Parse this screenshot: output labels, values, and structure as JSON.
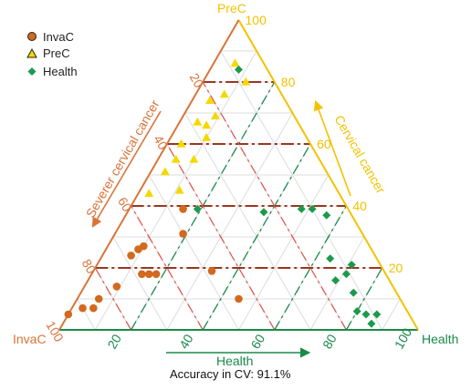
{
  "chart_data": {
    "type": "scatter",
    "subtype": "ternary",
    "grid": true,
    "legend_position": "top-left",
    "caption": "Accuracy in CV: 91.1%",
    "axes": {
      "preC": {
        "vertex_label": "PreC",
        "side_label": "Cervical cancer",
        "color": "#f2c200",
        "ticks": [
          "20",
          "40",
          "60",
          "80",
          "100"
        ]
      },
      "invaC": {
        "vertex_label": "InvaC",
        "side_label": "Severer cervical cancer",
        "color": "#d9743a",
        "ticks": [
          "20",
          "40",
          "60",
          "80",
          "100"
        ]
      },
      "health": {
        "vertex_label": "Health",
        "side_label": "Health",
        "color": "#1a8a4a",
        "ticks": [
          "20",
          "40",
          "60",
          "80",
          "100"
        ]
      }
    },
    "series": [
      {
        "name": "InvaC",
        "color": "#d2691e",
        "marker": "circle",
        "points": [
          {
            "health": 3,
            "precursor": 7
          },
          {
            "health": 6,
            "precursor": 7
          },
          {
            "health": 0,
            "precursor": 5
          },
          {
            "health": 6,
            "precursor": 10
          },
          {
            "health": 9,
            "precursor": 14
          },
          {
            "health": 14,
            "precursor": 18
          },
          {
            "health": 16,
            "precursor": 18
          },
          {
            "health": 18,
            "precursor": 18
          },
          {
            "health": 8,
            "precursor": 24
          },
          {
            "health": 10,
            "precursor": 27
          },
          {
            "health": 9,
            "precursor": 26
          },
          {
            "health": 19,
            "precursor": 31
          },
          {
            "health": 15,
            "precursor": 39
          },
          {
            "health": 45,
            "precursor": 10
          },
          {
            "health": 33,
            "precursor": 19
          }
        ]
      },
      {
        "name": "PreC",
        "color": "#f5d800",
        "marker": "triangle",
        "points": [
          {
            "health": 6,
            "precursor": 86
          },
          {
            "health": 8,
            "precursor": 76
          },
          {
            "health": 12,
            "precursor": 80
          },
          {
            "health": 5,
            "precursor": 74
          },
          {
            "health": 8,
            "precursor": 66
          },
          {
            "health": 9,
            "precursor": 69
          },
          {
            "health": 10,
            "precursor": 62
          },
          {
            "health": 5,
            "precursor": 67
          },
          {
            "health": 4,
            "precursor": 60
          },
          {
            "health": 10,
            "precursor": 55
          },
          {
            "health": 11,
            "precursor": 45
          },
          {
            "health": 5,
            "precursor": 55
          },
          {
            "health": 4,
            "precursor": 51
          },
          {
            "health": 3,
            "precursor": 44
          }
        ]
      },
      {
        "name": "Health",
        "color": "#1a9a4a",
        "marker": "diamond",
        "points": [
          {
            "health": 8,
            "precursor": 84
          },
          {
            "health": 48,
            "precursor": 39
          },
          {
            "health": 19,
            "precursor": 39
          },
          {
            "health": 38,
            "precursor": 38
          },
          {
            "health": 51,
            "precursor": 39
          },
          {
            "health": 56,
            "precursor": 37
          },
          {
            "health": 64,
            "precursor": 23
          },
          {
            "health": 71,
            "precursor": 21
          },
          {
            "health": 71,
            "precursor": 18
          },
          {
            "health": 69,
            "precursor": 16
          },
          {
            "health": 76,
            "precursor": 12
          },
          {
            "health": 80,
            "precursor": 6
          },
          {
            "health": 83,
            "precursor": 5
          },
          {
            "health": 86,
            "precursor": 5
          },
          {
            "health": 86,
            "precursor": 2
          }
        ]
      }
    ]
  }
}
